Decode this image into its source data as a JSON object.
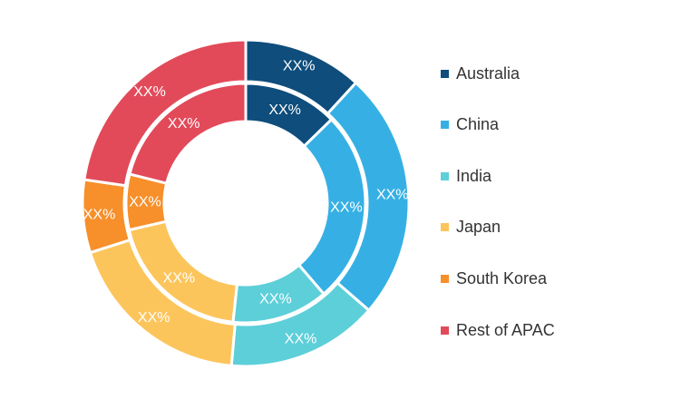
{
  "chart_data": {
    "type": "pie",
    "style": "double-donut",
    "legend_position": "right",
    "categories": [
      "Australia",
      "China",
      "India",
      "Japan",
      "South Korea",
      "Rest of APAC"
    ],
    "colors": [
      "#0e4d7c",
      "#36b0e4",
      "#5dcfd9",
      "#fcc55c",
      "#f78f2a",
      "#e24a5a"
    ],
    "series": [
      {
        "ring": "outer",
        "values": [
          11.8,
          24.6,
          15.0,
          18.7,
          7.2,
          22.7
        ],
        "labels": [
          "XX%",
          "XX%",
          "XX%",
          "XX%",
          "XX%",
          "XX%"
        ]
      },
      {
        "ring": "inner",
        "values": [
          12.7,
          26.0,
          13.0,
          19.7,
          7.5,
          21.1
        ],
        "labels": [
          "XX%",
          "XX%",
          "XX%",
          "XX%",
          "XX%",
          "XX%"
        ]
      }
    ]
  }
}
